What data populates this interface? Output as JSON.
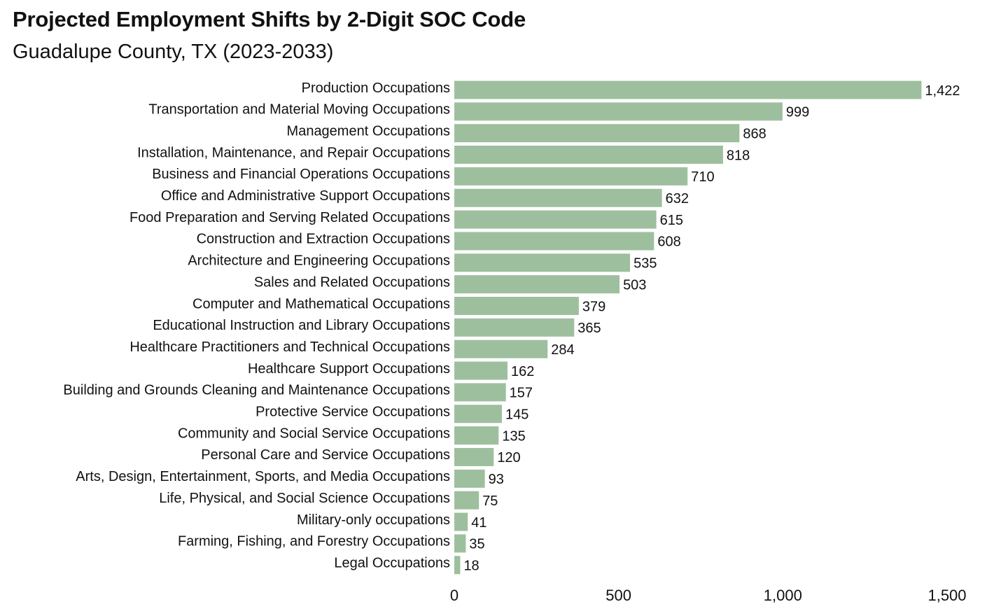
{
  "chart_data": {
    "type": "bar",
    "orientation": "horizontal",
    "title": "Projected Employment Shifts by 2-Digit SOC Code",
    "subtitle": "Guadalupe County, TX (2023-2033)",
    "xlabel": "",
    "ylabel": "",
    "xlim": [
      0,
      1500
    ],
    "x_ticks": [
      0,
      500,
      1000,
      1500
    ],
    "x_tick_labels": [
      "0",
      "500",
      "1,000",
      "1,500"
    ],
    "grid": false,
    "legend": "none",
    "bar_color": "#9ebf9e",
    "categories": [
      "Production Occupations",
      "Transportation and Material Moving Occupations",
      "Management Occupations",
      "Installation, Maintenance, and Repair Occupations",
      "Business and Financial Operations Occupations",
      "Office and Administrative Support Occupations",
      "Food Preparation and Serving Related Occupations",
      "Construction and Extraction Occupations",
      "Architecture and Engineering Occupations",
      "Sales and Related Occupations",
      "Computer and Mathematical Occupations",
      "Educational Instruction and Library Occupations",
      "Healthcare Practitioners and Technical Occupations",
      "Healthcare Support Occupations",
      "Building and Grounds Cleaning and Maintenance Occupations",
      "Protective Service Occupations",
      "Community and Social Service Occupations",
      "Personal Care and Service Occupations",
      "Arts, Design, Entertainment, Sports, and Media Occupations",
      "Life, Physical, and Social Science Occupations",
      "Military-only occupations",
      "Farming, Fishing, and Forestry Occupations",
      "Legal Occupations"
    ],
    "values": [
      1422,
      999,
      868,
      818,
      710,
      632,
      615,
      608,
      535,
      503,
      379,
      365,
      284,
      162,
      157,
      145,
      135,
      120,
      93,
      75,
      41,
      35,
      18
    ],
    "value_labels": [
      "1,422",
      "999",
      "868",
      "818",
      "710",
      "632",
      "615",
      "608",
      "535",
      "503",
      "379",
      "365",
      "284",
      "162",
      "157",
      "145",
      "135",
      "120",
      "93",
      "75",
      "41",
      "35",
      "18"
    ]
  }
}
